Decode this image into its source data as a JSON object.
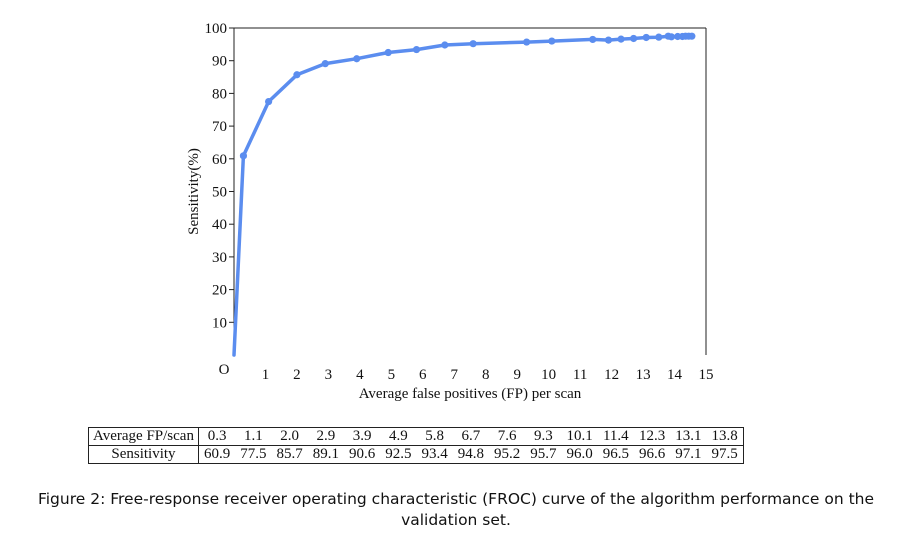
{
  "chart_data": {
    "type": "line",
    "xlabel": "Average false positives (FP) per scan",
    "ylabel": "Sensitivity(%)",
    "xlim": [
      0,
      15
    ],
    "ylim": [
      0,
      100
    ],
    "x_ticks": [
      "1",
      "2",
      "3",
      "4",
      "5",
      "6",
      "7",
      "8",
      "9",
      "10",
      "11",
      "12",
      "13",
      "14",
      "15"
    ],
    "y_ticks": [
      "10",
      "20",
      "30",
      "40",
      "50",
      "60",
      "70",
      "80",
      "90",
      "100"
    ],
    "origin_label": "O",
    "grid": false,
    "legend": "none",
    "line_color": "#5b8def",
    "series": [
      {
        "x": [
          0.0,
          0.3,
          1.1,
          2.0,
          2.9,
          3.9,
          4.9,
          5.8,
          6.7,
          7.6,
          9.3,
          10.1,
          11.4,
          12.3,
          13.1,
          13.8,
          11.9,
          12.7,
          13.5,
          13.9,
          14.1,
          14.25,
          14.35,
          14.45,
          14.55
        ],
        "y": [
          0,
          60.9,
          77.5,
          85.7,
          89.1,
          90.6,
          92.5,
          93.4,
          94.8,
          95.2,
          95.7,
          96.0,
          96.5,
          96.6,
          97.1,
          97.5,
          96.3,
          96.8,
          97.2,
          97.3,
          97.4,
          97.4,
          97.5,
          97.5,
          97.5
        ]
      }
    ]
  },
  "table": {
    "header_fp": "Average FP/scan",
    "header_sens": "Sensitivity",
    "fp": [
      "0.3",
      "1.1",
      "2.0",
      "2.9",
      "3.9",
      "4.9",
      "5.8",
      "6.7",
      "7.6",
      "9.3",
      "10.1",
      "11.4",
      "12.3",
      "13.1",
      "13.8"
    ],
    "sensitivity": [
      "60.9",
      "77.5",
      "85.7",
      "89.1",
      "90.6",
      "92.5",
      "93.4",
      "94.8",
      "95.2",
      "95.7",
      "96.0",
      "96.5",
      "96.6",
      "97.1",
      "97.5"
    ]
  },
  "caption": "Figure 2: Free-response receiver operating characteristic (FROC) curve of the algorithm performance on the validation set."
}
